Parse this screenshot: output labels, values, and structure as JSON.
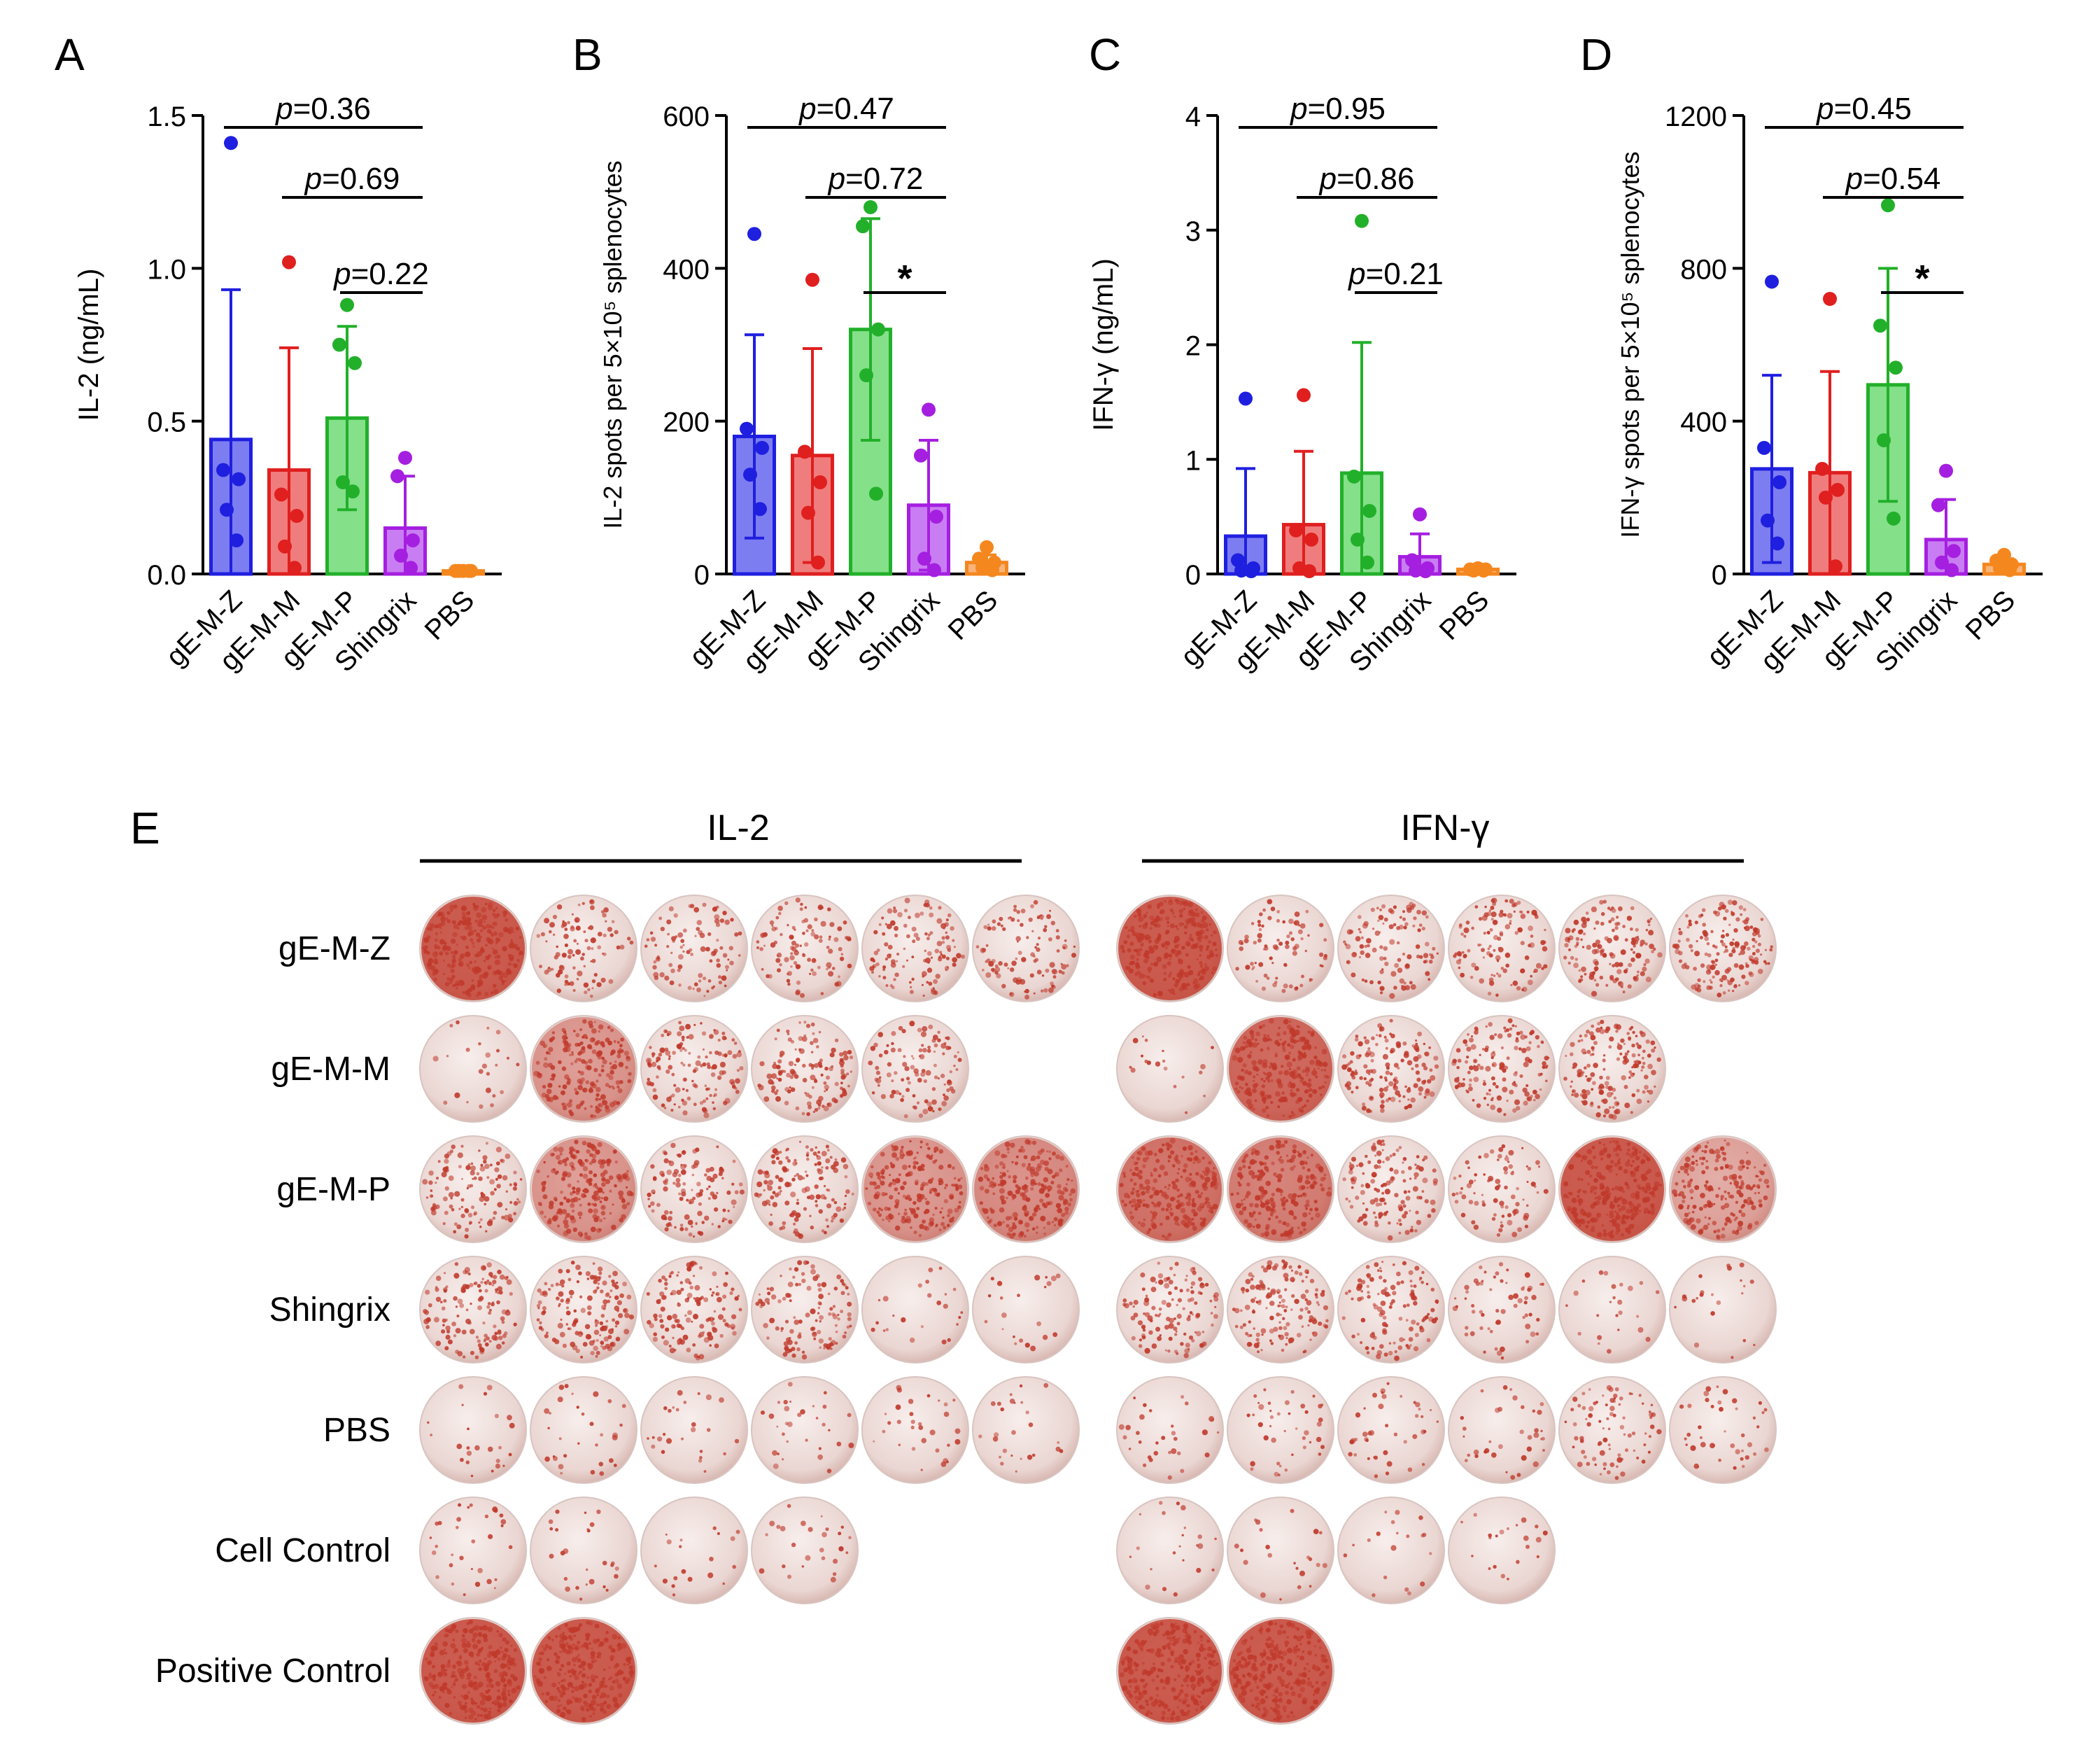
{
  "colors": {
    "groups": [
      "#1f1fe0",
      "#e01f1f",
      "#22b02a",
      "#a51fe0",
      "#f5871f"
    ],
    "fills": [
      "#7d7df2",
      "#f07d7d",
      "#85e08a",
      "#c97df2",
      "#f8b47a"
    ],
    "axis": "#000000",
    "spot_red": "#c0392b",
    "well_bg": "#f1e4e1"
  },
  "chart_data": [
    {
      "panel": "A",
      "type": "bar",
      "title": "",
      "xlabel": "",
      "ylabel": "IL-2  (ng/mL)",
      "categories": [
        "gE-M-Z",
        "gE-M-M",
        "gE-M-P",
        "Shingrix",
        "PBS"
      ],
      "ylim": [
        0,
        1.5
      ],
      "yticks": [
        0,
        0.5,
        1.0,
        1.5
      ],
      "ytick_labels": [
        "0.0",
        "0.5",
        "1.0",
        "1.5"
      ],
      "values": [
        0.44,
        0.34,
        0.51,
        0.15,
        0.01
      ],
      "sd": [
        0.49,
        0.4,
        0.3,
        0.17,
        0.005
      ],
      "points": [
        [
          1.41,
          0.34,
          0.31,
          0.21,
          0.11
        ],
        [
          1.02,
          0.26,
          0.19,
          0.09,
          0.02
        ],
        [
          0.88,
          0.75,
          0.69,
          0.3,
          0.27
        ],
        [
          0.38,
          0.32,
          0.11,
          0.06,
          0.02
        ],
        [
          0.01,
          0.01,
          0.01,
          0.01,
          0.01
        ]
      ],
      "comparisons": [
        {
          "a": 0,
          "b": 3,
          "text": "p=0.36"
        },
        {
          "a": 1,
          "b": 3,
          "text": "p=0.69"
        },
        {
          "a": 2,
          "b": 3,
          "text": "p=0.22"
        }
      ]
    },
    {
      "panel": "B",
      "type": "bar",
      "title": "",
      "xlabel": "",
      "ylabel": "IL-2 spots per 5×10⁵ splenocytes",
      "categories": [
        "gE-M-Z",
        "gE-M-M",
        "gE-M-P",
        "Shingrix",
        "PBS"
      ],
      "ylim": [
        0,
        600
      ],
      "yticks": [
        0,
        200,
        400,
        600
      ],
      "ytick_labels": [
        "0",
        "200",
        "400",
        "600"
      ],
      "values": [
        180,
        155,
        320,
        90,
        15
      ],
      "sd": [
        133,
        140,
        145,
        85,
        10
      ],
      "points": [
        [
          445,
          190,
          165,
          130,
          85
        ],
        [
          385,
          160,
          120,
          80,
          15
        ],
        [
          480,
          455,
          320,
          260,
          105
        ],
        [
          215,
          155,
          75,
          20,
          5
        ],
        [
          35,
          20,
          15,
          8,
          5
        ]
      ],
      "comparisons": [
        {
          "a": 0,
          "b": 3,
          "text": "p=0.47"
        },
        {
          "a": 1,
          "b": 3,
          "text": "p=0.72"
        },
        {
          "a": 2,
          "b": 3,
          "text": "*"
        }
      ]
    },
    {
      "panel": "C",
      "type": "bar",
      "title": "",
      "xlabel": "",
      "ylabel": "IFN-γ (ng/mL)",
      "categories": [
        "gE-M-Z",
        "gE-M-M",
        "gE-M-P",
        "Shingrix",
        "PBS"
      ],
      "ylim": [
        0,
        4
      ],
      "yticks": [
        0,
        1,
        2,
        3,
        4
      ],
      "ytick_labels": [
        "0",
        "1",
        "2",
        "3",
        "4"
      ],
      "values": [
        0.33,
        0.43,
        0.88,
        0.15,
        0.04
      ],
      "sd": [
        0.59,
        0.64,
        1.14,
        0.2,
        0.02
      ],
      "points": [
        [
          1.53,
          0.12,
          0.05,
          0.03,
          0.02
        ],
        [
          1.56,
          0.38,
          0.3,
          0.05,
          0.02
        ],
        [
          3.08,
          0.85,
          0.55,
          0.3,
          0.1
        ],
        [
          0.52,
          0.12,
          0.05,
          0.03,
          0.02
        ],
        [
          0.05,
          0.04,
          0.04,
          0.03,
          0.03
        ]
      ],
      "comparisons": [
        {
          "a": 0,
          "b": 3,
          "text": "p=0.95"
        },
        {
          "a": 1,
          "b": 3,
          "text": "p=0.86"
        },
        {
          "a": 2,
          "b": 3,
          "text": "p=0.21"
        }
      ]
    },
    {
      "panel": "D",
      "type": "bar",
      "title": "",
      "xlabel": "",
      "ylabel": "IFN-γ spots per 5×10⁵ splenocytes",
      "categories": [
        "gE-M-Z",
        "gE-M-M",
        "gE-M-P",
        "Shingrix",
        "PBS"
      ],
      "ylim": [
        0,
        1200
      ],
      "yticks": [
        0,
        400,
        800,
        1200
      ],
      "ytick_labels": [
        "0",
        "400",
        "800",
        "1200"
      ],
      "values": [
        275,
        265,
        495,
        90,
        25
      ],
      "sd": [
        245,
        265,
        305,
        105,
        15
      ],
      "points": [
        [
          765,
          330,
          240,
          140,
          80
        ],
        [
          720,
          275,
          220,
          200,
          20
        ],
        [
          965,
          650,
          540,
          350,
          145
        ],
        [
          270,
          180,
          60,
          30,
          10
        ],
        [
          50,
          35,
          25,
          15,
          10
        ]
      ],
      "comparisons": [
        {
          "a": 0,
          "b": 3,
          "text": "p=0.45"
        },
        {
          "a": 1,
          "b": 3,
          "text": "p=0.54"
        },
        {
          "a": 2,
          "b": 3,
          "text": "*"
        }
      ]
    }
  ],
  "elispot": {
    "panel": "E",
    "sections": [
      "IL-2",
      "IFN-γ"
    ],
    "rows": [
      {
        "label": "gE-M-Z",
        "il2": [
          1.0,
          0.35,
          0.35,
          0.4,
          0.45,
          0.4
        ],
        "ifn": [
          1.0,
          0.3,
          0.4,
          0.45,
          0.55,
          0.6
        ]
      },
      {
        "label": "gE-M-M",
        "il2": [
          0.05,
          0.75,
          0.55,
          0.5,
          0.4
        ],
        "ifn": [
          0.03,
          0.95,
          0.55,
          0.55,
          0.6
        ]
      },
      {
        "label": "gE-M-P",
        "il2": [
          0.45,
          0.75,
          0.45,
          0.55,
          0.75,
          0.8
        ],
        "ifn": [
          0.9,
          0.85,
          0.5,
          0.3,
          1.0,
          0.7
        ]
      },
      {
        "label": "Shingrix",
        "il2": [
          0.5,
          0.6,
          0.5,
          0.45,
          0.05,
          0.04
        ],
        "ifn": [
          0.45,
          0.55,
          0.45,
          0.2,
          0.05,
          0.04
        ]
      },
      {
        "label": "PBS",
        "il2": [
          0.05,
          0.08,
          0.06,
          0.08,
          0.08,
          0.06
        ],
        "ifn": [
          0.08,
          0.12,
          0.12,
          0.1,
          0.3,
          0.12
        ]
      },
      {
        "label": "Cell Control",
        "il2": [
          0.08,
          0.06,
          0.03,
          0.06
        ],
        "ifn": [
          0.04,
          0.04,
          0.03,
          0.04
        ]
      },
      {
        "label": "Positive Control",
        "il2": [
          1.0,
          1.0
        ],
        "ifn": [
          1.0,
          1.0
        ]
      }
    ]
  }
}
